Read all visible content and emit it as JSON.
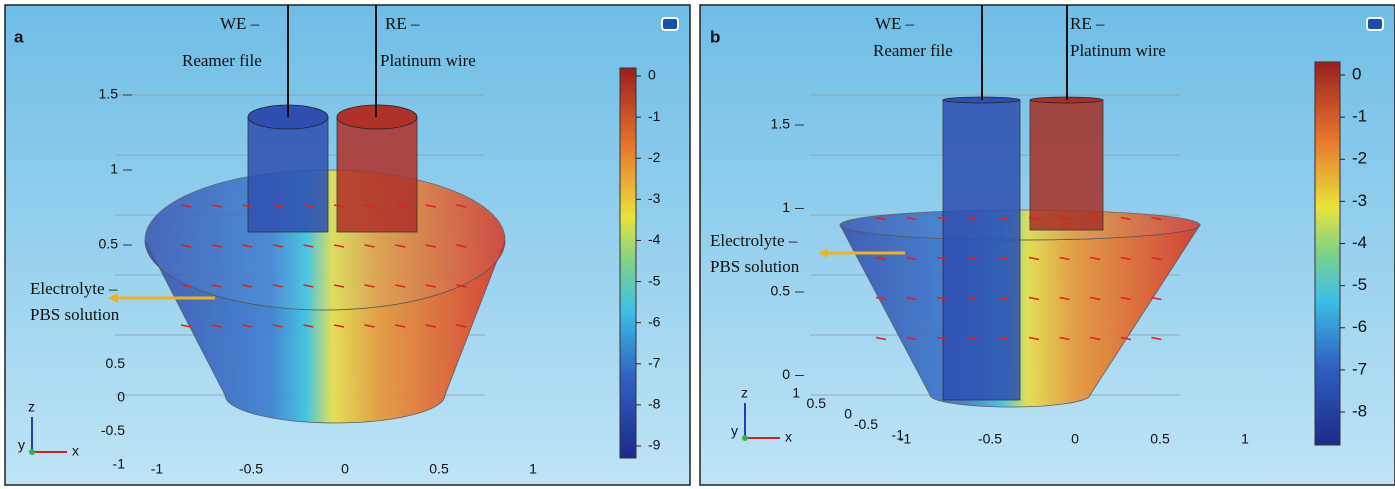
{
  "figure": {
    "panels": [
      {
        "label": "a",
        "we": {
          "title": "WE –",
          "subtitle": "Reamer file"
        },
        "re": {
          "title": "RE –",
          "subtitle": "Platinum wire"
        },
        "electrolyte": {
          "title": "Electrolyte –",
          "subtitle": "PBS solution"
        },
        "colorbar_ticks": [
          0,
          -1,
          -2,
          -3,
          -4,
          -5,
          -6,
          -7,
          -8,
          -9
        ],
        "z_ticks": [
          1.5,
          1,
          0.5
        ],
        "y_ticks": [
          0.5,
          0,
          -0.5,
          -1
        ],
        "x_ticks": [
          -1,
          -0.5,
          0,
          0.5,
          1
        ],
        "axis_labels": {
          "z": "z",
          "y": "y",
          "x": "x"
        }
      },
      {
        "label": "b",
        "we": {
          "title": "WE –",
          "subtitle": "Reamer file"
        },
        "re": {
          "title": "RE –",
          "subtitle": "Platinum wire"
        },
        "electrolyte": {
          "title": "Electrolyte –",
          "subtitle": "PBS solution"
        },
        "colorbar_ticks": [
          0,
          -1,
          -2,
          -3,
          -4,
          -5,
          -6,
          -7,
          -8
        ],
        "z_ticks": [
          1.5,
          1,
          0.5,
          0
        ],
        "y_ticks": [
          1,
          0.5,
          0,
          -0.5,
          -1
        ],
        "x_ticks": [
          -1,
          -0.5,
          0,
          0.5,
          1
        ],
        "axis_labels": {
          "z": "z",
          "y": "y",
          "x": "x"
        }
      }
    ]
  }
}
